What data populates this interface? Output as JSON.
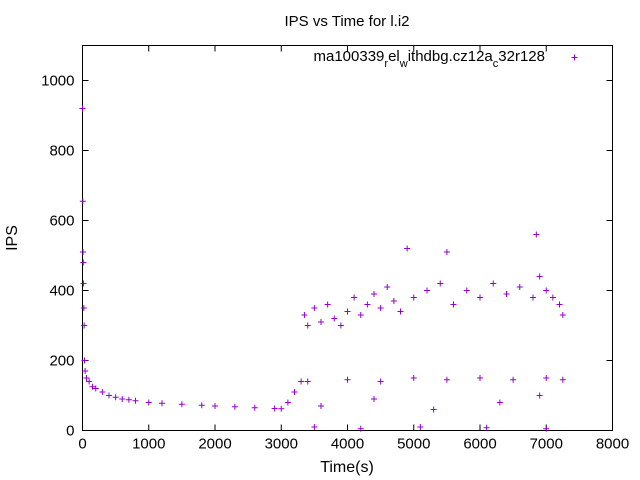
{
  "chart_data": {
    "type": "scatter",
    "title": "IPS vs Time for l.i2",
    "xlabel": "Time(s)",
    "ylabel": "IPS",
    "xlim": [
      0,
      8000
    ],
    "ylim": [
      0,
      1100
    ],
    "x_ticks": [
      0,
      1000,
      2000,
      3000,
      4000,
      5000,
      6000,
      7000,
      8000
    ],
    "y_ticks": [
      0,
      200,
      400,
      600,
      800,
      1000
    ],
    "x_tick_labels": [
      "0",
      "1000",
      "2000",
      "3000",
      "4000",
      "5000",
      "6000",
      "7000",
      "8000"
    ],
    "y_tick_labels": [
      "0",
      "200",
      "400",
      "600",
      "800",
      "1000"
    ],
    "grid": false,
    "legend_position": "top-right",
    "marker": "+",
    "series": [
      {
        "name": "ma100339_rel_withdbg.cz12a_c32r128",
        "legend": {
          "parts": [
            "ma100339",
            "r",
            "el",
            "w",
            "ithdbg.cz12a",
            "c",
            "32r128"
          ],
          "subscript": [
            false,
            true,
            false,
            true,
            false,
            true,
            false
          ]
        },
        "color": "#9400d3",
        "points": [
          [
            0,
            920
          ],
          [
            5,
            655
          ],
          [
            8,
            510
          ],
          [
            12,
            480
          ],
          [
            15,
            420
          ],
          [
            20,
            350
          ],
          [
            25,
            300
          ],
          [
            30,
            200
          ],
          [
            40,
            170
          ],
          [
            60,
            150
          ],
          [
            100,
            140
          ],
          [
            150,
            125
          ],
          [
            200,
            120
          ],
          [
            300,
            110
          ],
          [
            400,
            100
          ],
          [
            500,
            95
          ],
          [
            600,
            90
          ],
          [
            700,
            88
          ],
          [
            800,
            85
          ],
          [
            1000,
            80
          ],
          [
            1200,
            78
          ],
          [
            1500,
            75
          ],
          [
            1800,
            72
          ],
          [
            2000,
            70
          ],
          [
            2300,
            68
          ],
          [
            2600,
            65
          ],
          [
            2900,
            63
          ],
          [
            3000,
            62
          ],
          [
            3100,
            80
          ],
          [
            3200,
            110
          ],
          [
            3300,
            140
          ],
          [
            3350,
            330
          ],
          [
            3400,
            300
          ],
          [
            3500,
            350
          ],
          [
            3600,
            310
          ],
          [
            3700,
            360
          ],
          [
            3800,
            320
          ],
          [
            3900,
            300
          ],
          [
            4000,
            340
          ],
          [
            4100,
            380
          ],
          [
            4200,
            330
          ],
          [
            4300,
            360
          ],
          [
            4400,
            390
          ],
          [
            4500,
            350
          ],
          [
            4600,
            410
          ],
          [
            4700,
            370
          ],
          [
            4800,
            340
          ],
          [
            4900,
            520
          ],
          [
            5000,
            380
          ],
          [
            5200,
            400
          ],
          [
            5400,
            420
          ],
          [
            5500,
            510
          ],
          [
            5600,
            360
          ],
          [
            5800,
            400
          ],
          [
            6000,
            380
          ],
          [
            6200,
            420
          ],
          [
            6400,
            390
          ],
          [
            6600,
            410
          ],
          [
            6800,
            380
          ],
          [
            6850,
            560
          ],
          [
            6900,
            440
          ],
          [
            7000,
            400
          ],
          [
            7100,
            380
          ],
          [
            7200,
            360
          ],
          [
            7250,
            330
          ],
          [
            3400,
            140
          ],
          [
            4000,
            145
          ],
          [
            4500,
            140
          ],
          [
            5000,
            150
          ],
          [
            5500,
            145
          ],
          [
            6000,
            150
          ],
          [
            6500,
            145
          ],
          [
            7000,
            150
          ],
          [
            7250,
            145
          ],
          [
            3500,
            10
          ],
          [
            4200,
            5
          ],
          [
            5100,
            10
          ],
          [
            6100,
            8
          ],
          [
            7000,
            5
          ],
          [
            3600,
            70
          ],
          [
            4400,
            90
          ],
          [
            5300,
            60
          ],
          [
            6300,
            80
          ],
          [
            6900,
            100
          ]
        ]
      }
    ]
  }
}
